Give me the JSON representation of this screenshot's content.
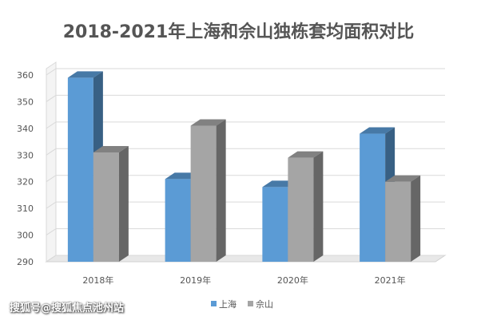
{
  "chart_data": {
    "type": "bar",
    "title": "2018-2021年上海和佘山独栋套均面积对比",
    "xlabel": "",
    "ylabel": "",
    "categories": [
      "2018年",
      "2019年",
      "2020年",
      "2021年"
    ],
    "series": [
      {
        "name": "上海",
        "values": [
          359,
          321,
          318,
          338
        ],
        "color": "#5b9bd5"
      },
      {
        "name": "佘山",
        "values": [
          331,
          341,
          329,
          320
        ],
        "color": "#a5a5a5"
      }
    ],
    "ylim": [
      290,
      360
    ],
    "yticks": [
      290,
      300,
      310,
      320,
      330,
      340,
      350,
      360
    ],
    "grid": true,
    "legend": "bottom",
    "style": "3d-column"
  },
  "watermark": "搜狐号@搜狐焦点池州站"
}
